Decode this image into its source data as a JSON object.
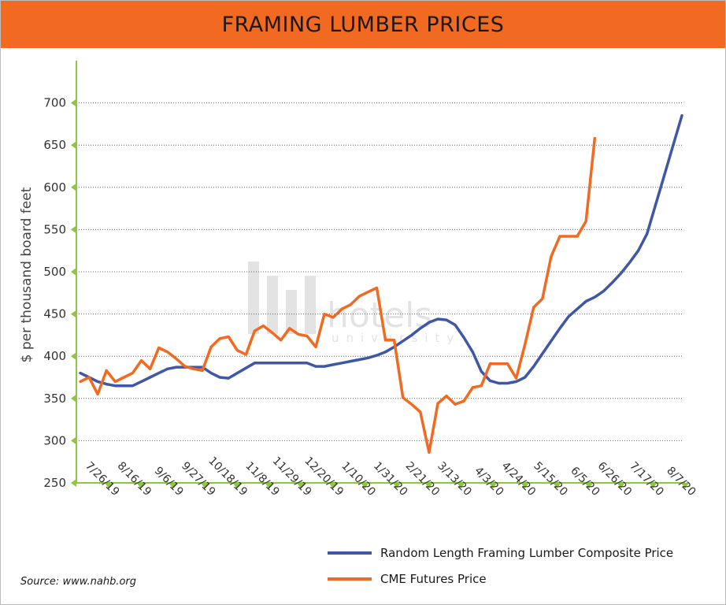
{
  "header": {
    "title": "FRAMING LUMBER PRICES"
  },
  "source_note": "Source: www.nahb.org",
  "watermark": {
    "text": "hotels",
    "subtext": "university"
  },
  "colors": {
    "header": "#f26a21",
    "axis": "#8dc63f",
    "blue_series": "#3f57a6",
    "orange_series": "#f26a21"
  },
  "chart_data": {
    "type": "line",
    "title": "FRAMING LUMBER PRICES",
    "ylabel": "$ per thousand board feet",
    "xlabel": "",
    "ylim": [
      250,
      750
    ],
    "yticks": [
      250,
      300,
      350,
      400,
      450,
      500,
      550,
      600,
      650,
      700
    ],
    "grid": "horizontal dotted",
    "legend_placement": "bottom-right",
    "x_tick_labels": [
      "7/26/19",
      "8/16/19",
      "9/6/19",
      "9/27/19",
      "10/18/19",
      "11/8/19",
      "11/29/19",
      "12/20/19",
      "1/10/20",
      "1/31/20",
      "2/21/20",
      "3/13/20",
      "4/3/20",
      "4/24/20",
      "5/15/20",
      "6/5/20",
      "6/26/20",
      "7/17/20",
      "8/7/20"
    ],
    "x_weeks": 58,
    "series": [
      {
        "name": "Random Length Framing Lumber Composite Price",
        "color": "#3f57a6",
        "points": [
          [
            0,
            380
          ],
          [
            1,
            375
          ],
          [
            2,
            370
          ],
          [
            3,
            367
          ],
          [
            4,
            365
          ],
          [
            5,
            365
          ],
          [
            6,
            365
          ],
          [
            7,
            370
          ],
          [
            8,
            375
          ],
          [
            9,
            380
          ],
          [
            10,
            385
          ],
          [
            11,
            387
          ],
          [
            12,
            387
          ],
          [
            13,
            387
          ],
          [
            14,
            387
          ],
          [
            15,
            380
          ],
          [
            16,
            375
          ],
          [
            17,
            374
          ],
          [
            18,
            380
          ],
          [
            19,
            386
          ],
          [
            20,
            392
          ],
          [
            21,
            392
          ],
          [
            22,
            392
          ],
          [
            23,
            392
          ],
          [
            24,
            392
          ],
          [
            25,
            392
          ],
          [
            26,
            392
          ],
          [
            27,
            388
          ],
          [
            28,
            388
          ],
          [
            29,
            390
          ],
          [
            30,
            392
          ],
          [
            31,
            394
          ],
          [
            32,
            396
          ],
          [
            33,
            398
          ],
          [
            34,
            401
          ],
          [
            35,
            405
          ],
          [
            36,
            411
          ],
          [
            37,
            418
          ],
          [
            38,
            425
          ],
          [
            39,
            433
          ],
          [
            40,
            440
          ],
          [
            41,
            444
          ],
          [
            42,
            443
          ],
          [
            43,
            437
          ],
          [
            44,
            422
          ],
          [
            45,
            405
          ],
          [
            46,
            382
          ],
          [
            47,
            371
          ],
          [
            48,
            368
          ],
          [
            49,
            368
          ],
          [
            50,
            370
          ],
          [
            51,
            375
          ],
          [
            52,
            388
          ],
          [
            53,
            403
          ],
          [
            54,
            418
          ],
          [
            55,
            433
          ],
          [
            56,
            447
          ],
          [
            57,
            456
          ],
          [
            58,
            465
          ],
          [
            59,
            470
          ],
          [
            60,
            477
          ],
          [
            61,
            487
          ],
          [
            62,
            498
          ],
          [
            63,
            511
          ],
          [
            64,
            525
          ],
          [
            65,
            545
          ],
          [
            66,
            580
          ],
          [
            67,
            615
          ],
          [
            68,
            650
          ],
          [
            69,
            685
          ]
        ]
      },
      {
        "name": "CME Futures Price",
        "color": "#f26a21",
        "points": [
          [
            0,
            370
          ],
          [
            1,
            375
          ],
          [
            2,
            355
          ],
          [
            3,
            383
          ],
          [
            4,
            370
          ],
          [
            5,
            375
          ],
          [
            6,
            380
          ],
          [
            7,
            395
          ],
          [
            8,
            385
          ],
          [
            9,
            410
          ],
          [
            10,
            405
          ],
          [
            11,
            397
          ],
          [
            12,
            388
          ],
          [
            13,
            385
          ],
          [
            14,
            383
          ],
          [
            15,
            411
          ],
          [
            16,
            421
          ],
          [
            17,
            423
          ],
          [
            18,
            407
          ],
          [
            19,
            402
          ],
          [
            20,
            430
          ],
          [
            21,
            436
          ],
          [
            22,
            428
          ],
          [
            23,
            419
          ],
          [
            24,
            433
          ],
          [
            25,
            426
          ],
          [
            26,
            424
          ],
          [
            27,
            411
          ],
          [
            28,
            450
          ],
          [
            29,
            446
          ],
          [
            30,
            456
          ],
          [
            31,
            461
          ],
          [
            32,
            471
          ],
          [
            33,
            476
          ],
          [
            34,
            481
          ],
          [
            35,
            419
          ],
          [
            36,
            419
          ],
          [
            37,
            351
          ],
          [
            38,
            343
          ],
          [
            39,
            334
          ],
          [
            40,
            286
          ],
          [
            41,
            344
          ],
          [
            42,
            353
          ],
          [
            43,
            343
          ],
          [
            44,
            347
          ],
          [
            45,
            363
          ],
          [
            46,
            365
          ],
          [
            47,
            391
          ],
          [
            48,
            391
          ],
          [
            49,
            391
          ],
          [
            50,
            374
          ],
          [
            51,
            414
          ],
          [
            52,
            458
          ],
          [
            53,
            468
          ],
          [
            54,
            518
          ],
          [
            55,
            542
          ],
          [
            56,
            542
          ],
          [
            57,
            542
          ],
          [
            58,
            560
          ],
          [
            59,
            658
          ]
        ]
      }
    ]
  }
}
